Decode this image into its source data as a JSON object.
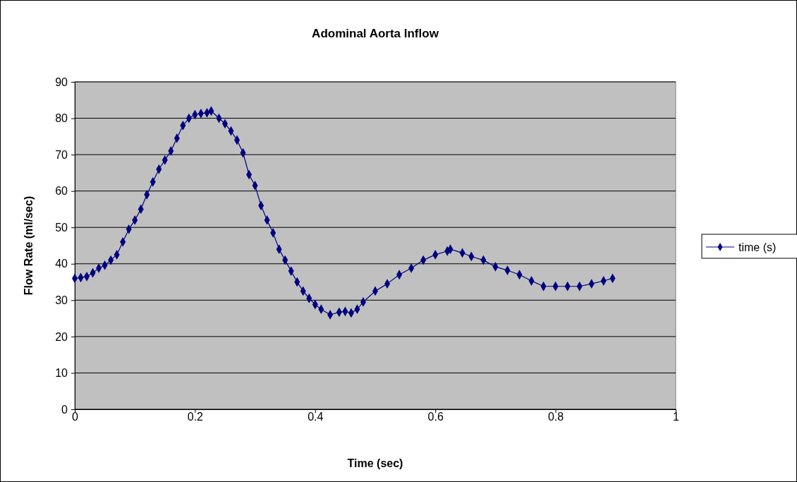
{
  "chart_data": {
    "type": "line",
    "title": "Adominal Aorta Inflow",
    "xlabel": "Time (sec)",
    "ylabel": "Flow Rate (ml/sec)",
    "xlim": [
      0,
      1
    ],
    "xticks": [
      0,
      0.2,
      0.4,
      0.6,
      0.8,
      1
    ],
    "ylim": [
      0,
      90
    ],
    "yticks": [
      0,
      10,
      20,
      30,
      40,
      50,
      60,
      70,
      80,
      90
    ],
    "grid": "y",
    "legend": "right",
    "marker": "diamond",
    "line_style": "solid",
    "series": [
      {
        "name": "time (s)",
        "color": "#000080",
        "x": [
          0,
          0.01,
          0.02,
          0.03,
          0.04,
          0.05,
          0.06,
          0.07,
          0.08,
          0.09,
          0.1,
          0.11,
          0.12,
          0.13,
          0.14,
          0.15,
          0.16,
          0.17,
          0.18,
          0.19,
          0.2,
          0.21,
          0.22,
          0.227,
          0.24,
          0.25,
          0.26,
          0.27,
          0.28,
          0.29,
          0.3,
          0.31,
          0.32,
          0.33,
          0.34,
          0.35,
          0.36,
          0.37,
          0.38,
          0.39,
          0.4,
          0.41,
          0.425,
          0.44,
          0.45,
          0.46,
          0.47,
          0.48,
          0.5,
          0.52,
          0.54,
          0.56,
          0.58,
          0.6,
          0.62,
          0.625,
          0.645,
          0.66,
          0.68,
          0.7,
          0.72,
          0.74,
          0.76,
          0.78,
          0.8,
          0.82,
          0.84,
          0.86,
          0.88,
          0.895
        ],
        "values": [
          36,
          36.2,
          36.5,
          37.5,
          38.8,
          39.6,
          41,
          42.5,
          46,
          49.5,
          52,
          55,
          59,
          62.5,
          66,
          68.5,
          71,
          74.5,
          78,
          80,
          81,
          81.3,
          81.5,
          82,
          80,
          78.5,
          76.5,
          74,
          70.5,
          64.5,
          61.5,
          56,
          52,
          48.5,
          44,
          41,
          38,
          35,
          32.5,
          30.5,
          28.8,
          27.5,
          26,
          26.7,
          26.9,
          26.5,
          27.5,
          29.5,
          32.5,
          34.5,
          37,
          38.8,
          41,
          42.5,
          43.5,
          44,
          43,
          42,
          41,
          39.2,
          38.2,
          37,
          35.3,
          33.8,
          33.8,
          33.8,
          33.8,
          34.5,
          35.3,
          36
        ]
      }
    ]
  }
}
